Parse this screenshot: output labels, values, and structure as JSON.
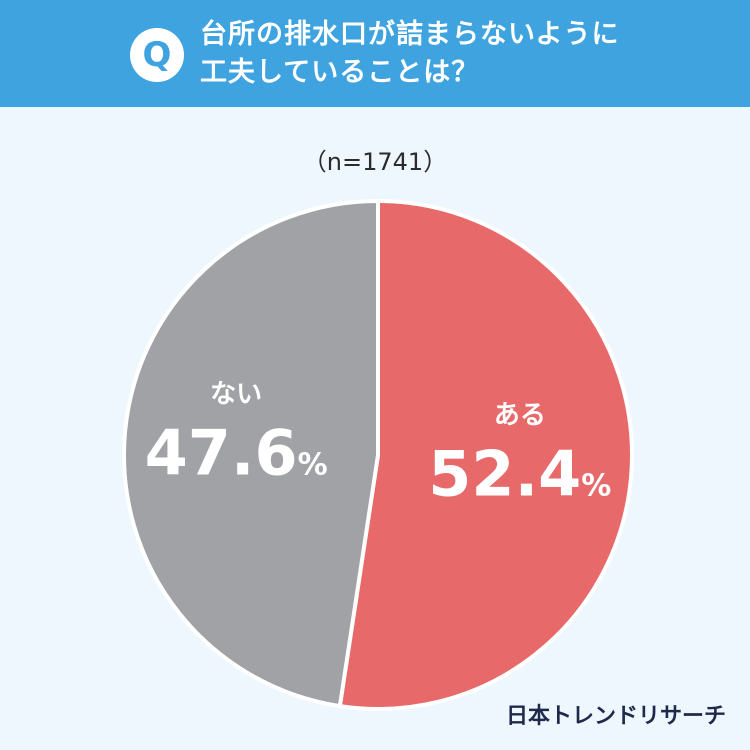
{
  "header": {
    "badge": "Q",
    "title_line1": "台所の排水口が詰まらないように",
    "title_line2": "工夫していることは？"
  },
  "sample_size": "（n=1741）",
  "brand": "日本トレンドリサーチ",
  "colors": {
    "header": "#3fa3e0",
    "background": "#eef7fd",
    "aru": "#e8696a",
    "nai": "#a1a2a6"
  },
  "chart_data": {
    "type": "pie",
    "title": "",
    "labels": [
      "ある",
      "ない"
    ],
    "values": [
      52.4,
      47.6
    ],
    "unit": "%",
    "start": "12 o'clock",
    "direction": "clockwise"
  }
}
